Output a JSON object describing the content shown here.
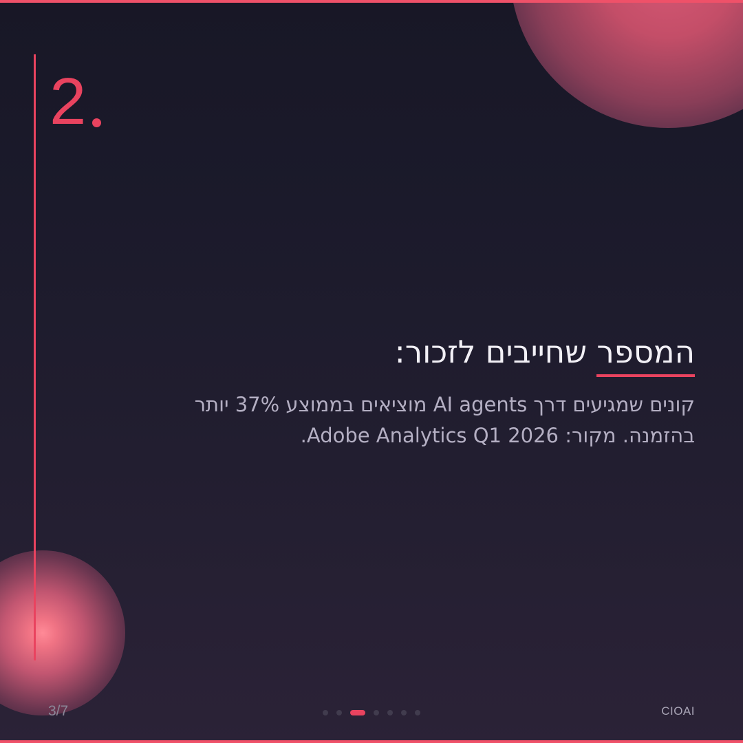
{
  "slide": {
    "number_label": "2",
    "title": {
      "underlined_word": "המספר",
      "rest": " שחייבים לזכור:"
    },
    "body": {
      "line1": "קונים שמגיעים דרך AI agents מוציאים בממוצע 37% יותר",
      "line2": "בהזמנה. מקור: Adobe Analytics Q1 2026."
    },
    "footer": {
      "page_indicator": "3/7",
      "brand": "CIOAI"
    },
    "pagination": {
      "total": 7,
      "active": 3
    },
    "colors": {
      "accent": "#e9435f",
      "bar": "#ef5169",
      "title_text": "#f2f0f6",
      "body_text": "#b4afc3",
      "muted_text": "#8b8798",
      "inactive_dot": "#413c4e",
      "background_top": "#181726",
      "background_bottom": "#2b2237"
    }
  }
}
